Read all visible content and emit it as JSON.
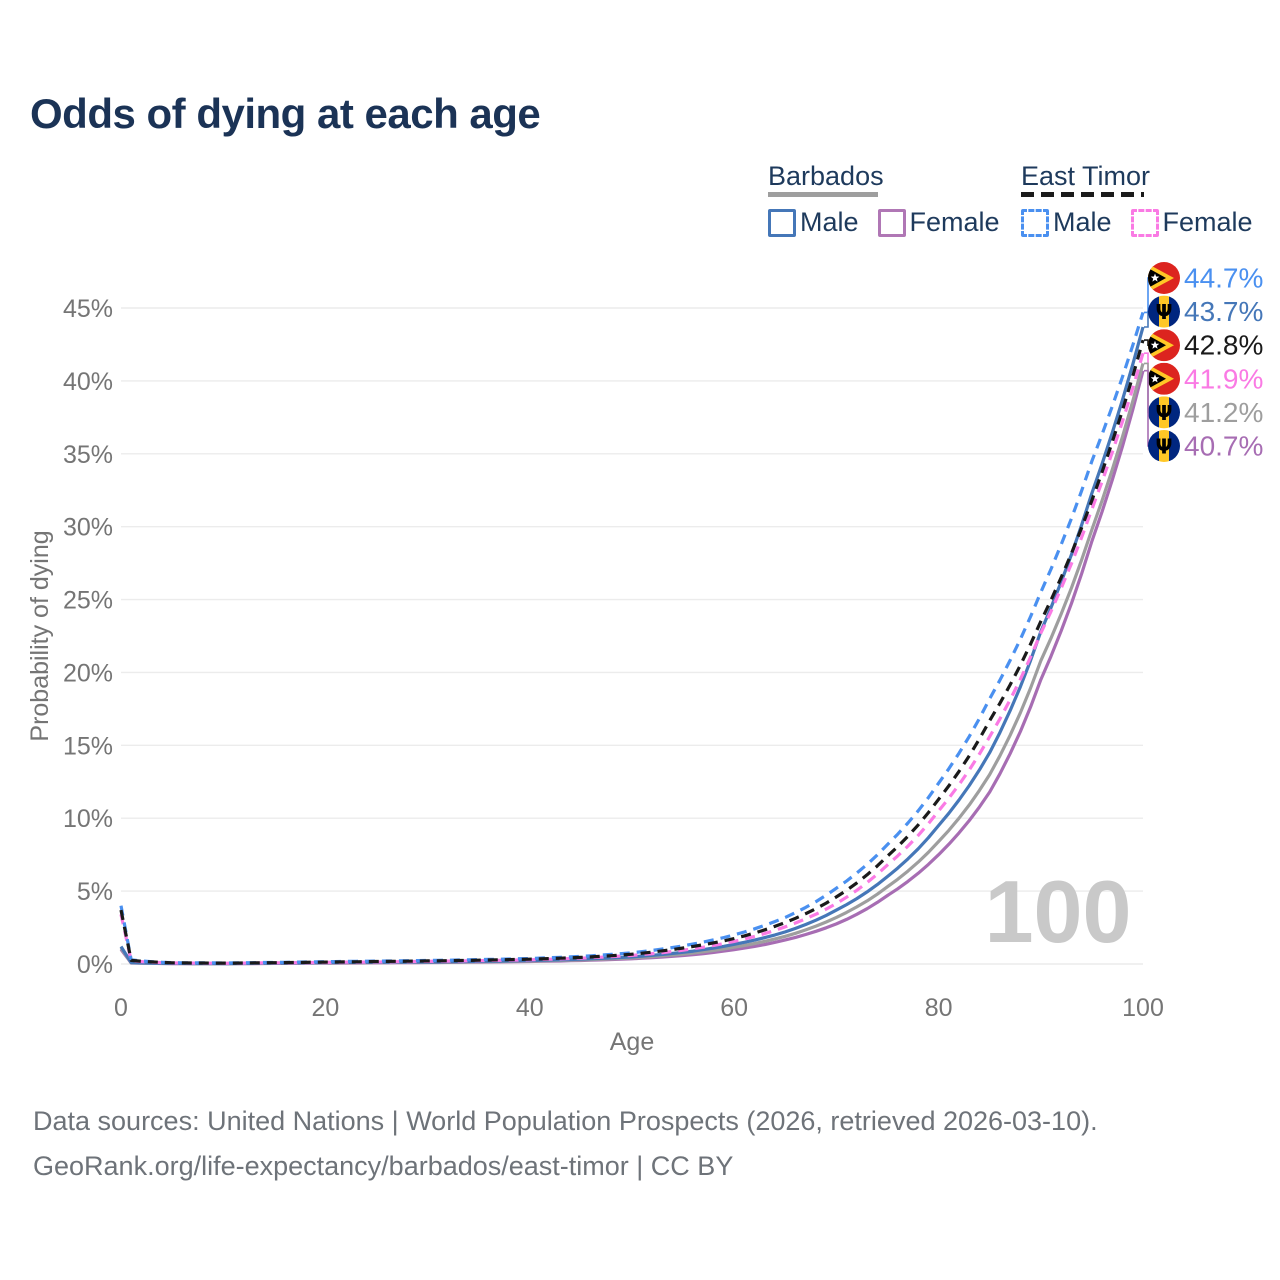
{
  "title": "Odds of dying at each age",
  "colors": {
    "title_text": "#1b3356",
    "legend_text": "#1e3a5c",
    "axis_text": "#757575",
    "grid": "#ececec",
    "watermark": "#c9c9c9",
    "footer_text": "#6e7379",
    "barbados_male": "#4577b8",
    "barbados_female": "#a76db3",
    "barbados_both": "#9e9e9e",
    "east_timor_male": "#4a90f0",
    "east_timor_female": "#fa7ae4",
    "east_timor_both": "#1a1a1a"
  },
  "legend": {
    "groups": [
      {
        "name": "Barbados",
        "line_style": "solid",
        "underline_color": "#9e9e9e",
        "items": [
          {
            "label": "Male",
            "color": "#4577b8",
            "dashed": false,
            "checked": false
          },
          {
            "label": "Female",
            "color": "#b077b5",
            "dashed": false,
            "checked": false
          }
        ]
      },
      {
        "name": "East Timor",
        "line_style": "dashed",
        "underline_color": "#1a1a1a",
        "items": [
          {
            "label": "Male",
            "color": "#4a90f0",
            "dashed": true,
            "checked": false
          },
          {
            "label": "Female",
            "color": "#fa7ae4",
            "dashed": true,
            "checked": false
          }
        ]
      }
    ]
  },
  "chart_data": {
    "type": "line",
    "title": "Odds of dying at each age",
    "xlabel": "Age",
    "ylabel": "Probability of dying",
    "unit": "%",
    "xlim": [
      0,
      100
    ],
    "ylim": [
      0,
      45
    ],
    "x_ticks": [
      0,
      20,
      40,
      60,
      80,
      100
    ],
    "y_ticks": [
      0,
      5,
      10,
      15,
      20,
      25,
      30,
      35,
      40,
      45
    ],
    "grid": "horizontal",
    "legend_position": "top-right",
    "watermark": "100",
    "ages": [
      0,
      1,
      5,
      10,
      15,
      20,
      25,
      30,
      35,
      40,
      45,
      50,
      55,
      60,
      65,
      70,
      75,
      80,
      85,
      90,
      95,
      100
    ],
    "series": [
      {
        "name": "East Timor Male",
        "country": "East Timor",
        "sex": "male",
        "color": "#4a90f0",
        "dashed": true,
        "flag": "east-timor",
        "end_label": "44.7%",
        "values": [
          4.0,
          0.28,
          0.09,
          0.07,
          0.11,
          0.16,
          0.2,
          0.24,
          0.3,
          0.38,
          0.52,
          0.77,
          1.25,
          2.0,
          3.2,
          5.2,
          8.2,
          12.4,
          18.2,
          25.5,
          34.5,
          44.7
        ]
      },
      {
        "name": "Barbados Male",
        "country": "Barbados",
        "sex": "male",
        "color": "#4577b8",
        "dashed": false,
        "flag": "barbados",
        "end_label": "43.7%",
        "values": [
          1.2,
          0.09,
          0.04,
          0.03,
          0.06,
          0.1,
          0.12,
          0.14,
          0.18,
          0.24,
          0.33,
          0.49,
          0.8,
          1.35,
          2.2,
          3.7,
          6.0,
          9.5,
          14.5,
          22.8,
          32.3,
          43.7
        ]
      },
      {
        "name": "East Timor Both sexes",
        "country": "East Timor",
        "sex": "both",
        "color": "#1a1a1a",
        "dashed": true,
        "flag": "east-timor",
        "end_label": "42.8%",
        "values": [
          3.7,
          0.25,
          0.08,
          0.06,
          0.09,
          0.13,
          0.17,
          0.21,
          0.26,
          0.33,
          0.45,
          0.67,
          1.1,
          1.75,
          2.85,
          4.6,
          7.4,
          11.3,
          16.7,
          23.5,
          31.8,
          42.8
        ]
      },
      {
        "name": "East Timor Female",
        "country": "East Timor",
        "sex": "female",
        "color": "#fa7ae4",
        "dashed": true,
        "flag": "east-timor",
        "end_label": "41.9%",
        "values": [
          3.4,
          0.22,
          0.07,
          0.05,
          0.08,
          0.11,
          0.14,
          0.18,
          0.23,
          0.29,
          0.4,
          0.59,
          0.95,
          1.55,
          2.55,
          4.15,
          6.8,
          10.5,
          15.6,
          22.7,
          31.2,
          41.9
        ]
      },
      {
        "name": "Barbados Both sexes",
        "country": "Barbados",
        "sex": "both",
        "color": "#9e9e9e",
        "dashed": false,
        "flag": "barbados",
        "end_label": "41.2%",
        "values": [
          1.1,
          0.08,
          0.035,
          0.025,
          0.05,
          0.08,
          0.1,
          0.12,
          0.15,
          0.2,
          0.28,
          0.42,
          0.68,
          1.15,
          1.9,
          3.2,
          5.3,
          8.4,
          13.0,
          20.8,
          29.8,
          41.2
        ]
      },
      {
        "name": "Barbados Female",
        "country": "Barbados",
        "sex": "female",
        "color": "#a76db3",
        "dashed": false,
        "flag": "barbados",
        "end_label": "40.7%",
        "values": [
          1.0,
          0.07,
          0.03,
          0.02,
          0.04,
          0.06,
          0.08,
          0.1,
          0.13,
          0.17,
          0.24,
          0.36,
          0.58,
          0.98,
          1.65,
          2.75,
          4.7,
          7.5,
          11.8,
          19.5,
          29.0,
          40.7
        ]
      }
    ]
  },
  "footer": {
    "line1": "Data sources: United Nations | World Population Prospects (2026, retrieved 2026-03-10).",
    "line2": "GeoRank.org/life-expectancy/barbados/east-timor | CC BY"
  }
}
